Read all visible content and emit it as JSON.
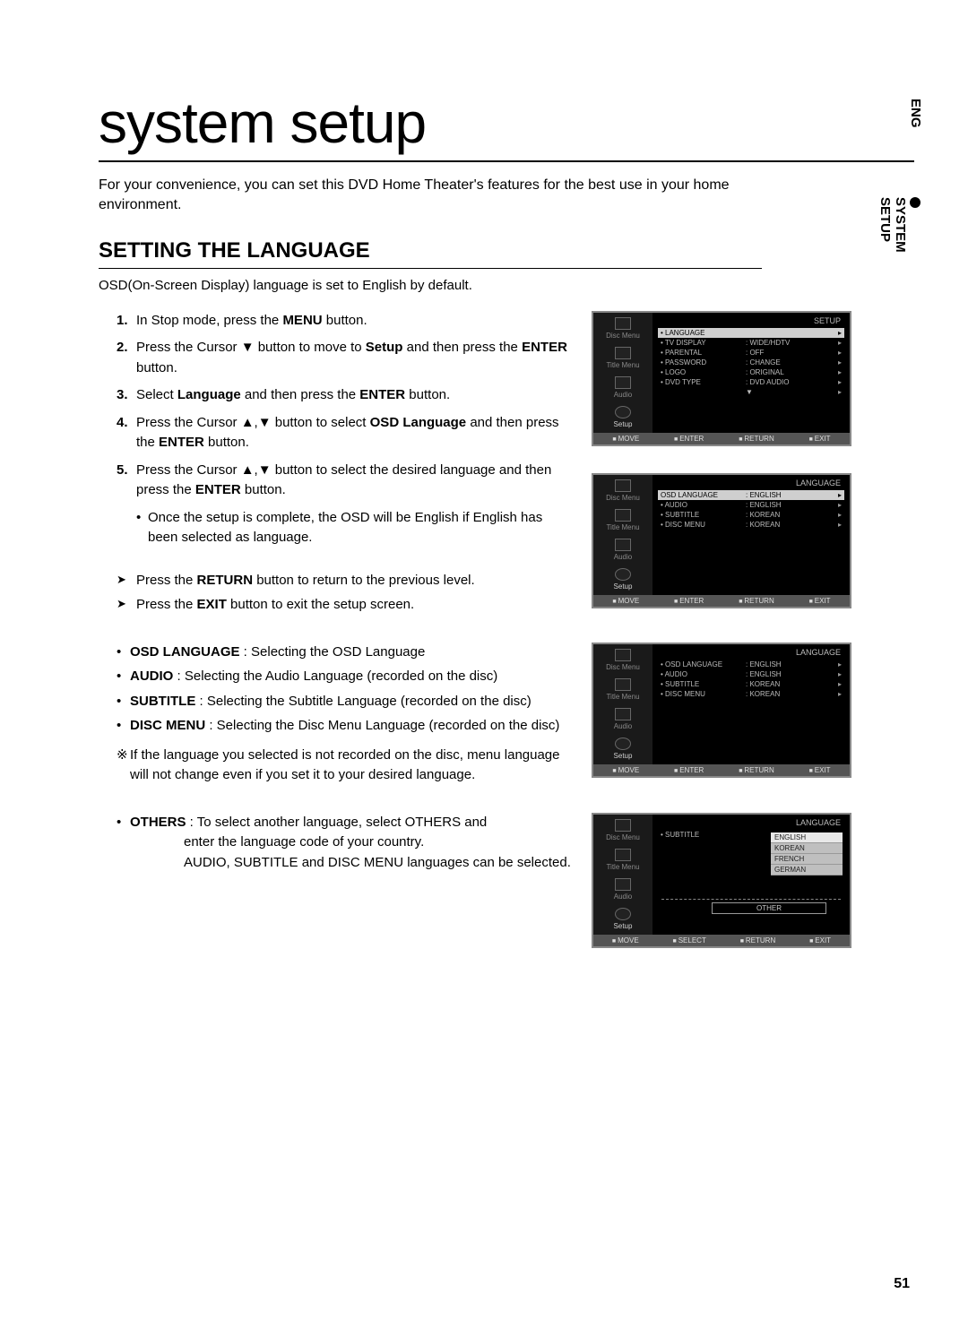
{
  "page": {
    "title": "system setup",
    "intro": "For your convenience, you can set this DVD Home Theater's features for the best use in your home environment.",
    "side_eng": "ENG",
    "side_tab": "SYSTEM SETUP",
    "page_number": "51"
  },
  "section": {
    "title": "SETTING THE LANGUAGE",
    "subtitle": "OSD(On-Screen Display) language is set to English by default."
  },
  "steps": [
    {
      "n": "1.",
      "html": "In Stop mode, press the <b>MENU</b> button."
    },
    {
      "n": "2.",
      "html": "Press the Cursor ▼ button to move to <b>Setup</b> and then press the <b>ENTER</b> button."
    },
    {
      "n": "3.",
      "html": "Select <b>Language</b> and then press the <b>ENTER</b> button."
    },
    {
      "n": "4.",
      "html": "Press the Cursor ▲,▼ button to select <b>OSD Language</b> and then press the <b>ENTER</b> button."
    },
    {
      "n": "5.",
      "html": "Press the Cursor ▲,▼ button to select the desired language and then press the <b>ENTER</b> button."
    }
  ],
  "step5_sub": "Once the setup is complete, the OSD will be English if English has been selected as language.",
  "arrows": [
    "Press the <b>RETURN</b> button to return to the previous level.",
    "Press the <b>EXIT</b> button to exit the setup screen."
  ],
  "options": [
    {
      "label": "OSD LANGUAGE",
      "desc": " : Selecting the OSD Language"
    },
    {
      "label": "AUDIO",
      "desc": " : Selecting the Audio Language (recorded on the disc)"
    },
    {
      "label": "SUBTITLE",
      "desc": " : Selecting the Subtitle Language (recorded on the disc)"
    },
    {
      "label": "DISC MENU",
      "desc": " : Selecting the Disc Menu Language (recorded on the disc)"
    }
  ],
  "note_mark": "※",
  "note": "If the language you selected is not recorded on the disc, menu language will not change even if you set it to your desired language.",
  "others": {
    "label": "OTHERS",
    "line1": " : To select another language, select OTHERS and",
    "line2": "enter the language code of your country.",
    "line3": "AUDIO, SUBTITLE and DISC MENU languages can be selected."
  },
  "sidebar": {
    "items": [
      "Disc Menu",
      "Title Menu",
      "Audio",
      "Setup"
    ]
  },
  "footer": {
    "move": "MOVE",
    "enter": "ENTER",
    "select": "SELECT",
    "return": "RETURN",
    "exit": "EXIT"
  },
  "screen1": {
    "header": "SETUP",
    "rows": [
      {
        "c1": "• LANGUAGE",
        "c2": "",
        "sel": true
      },
      {
        "c1": "• TV DISPLAY",
        "c2": ": WIDE/HDTV"
      },
      {
        "c1": "• PARENTAL",
        "c2": ": OFF"
      },
      {
        "c1": "• PASSWORD",
        "c2": ": CHANGE"
      },
      {
        "c1": "• LOGO",
        "c2": ": ORIGINAL"
      },
      {
        "c1": "• DVD TYPE",
        "c2": ": DVD AUDIO"
      },
      {
        "c1": "",
        "c2": "▼"
      }
    ]
  },
  "screen2": {
    "header": "LANGUAGE",
    "rows": [
      {
        "c1": "OSD LANGUAGE",
        "c2": ": ENGLISH",
        "sel": true
      },
      {
        "c1": "• AUDIO",
        "c2": ": ENGLISH"
      },
      {
        "c1": "• SUBTITLE",
        "c2": ": KOREAN"
      },
      {
        "c1": "• DISC MENU",
        "c2": ": KOREAN"
      }
    ]
  },
  "screen3": {
    "header": "LANGUAGE",
    "rows": [
      {
        "c1": "• OSD LANGUAGE",
        "c2": ": ENGLISH"
      },
      {
        "c1": "• AUDIO",
        "c2": ": ENGLISH"
      },
      {
        "c1": "• SUBTITLE",
        "c2": ": KOREAN"
      },
      {
        "c1": "• DISC MENU",
        "c2": ": KOREAN"
      }
    ]
  },
  "screen4": {
    "header": "LANGUAGE",
    "leftItem": "• SUBTITLE",
    "dropdown": [
      "ENGLISH",
      "KOREAN",
      "FRENCH",
      "GERMAN"
    ],
    "other": "OTHER"
  }
}
